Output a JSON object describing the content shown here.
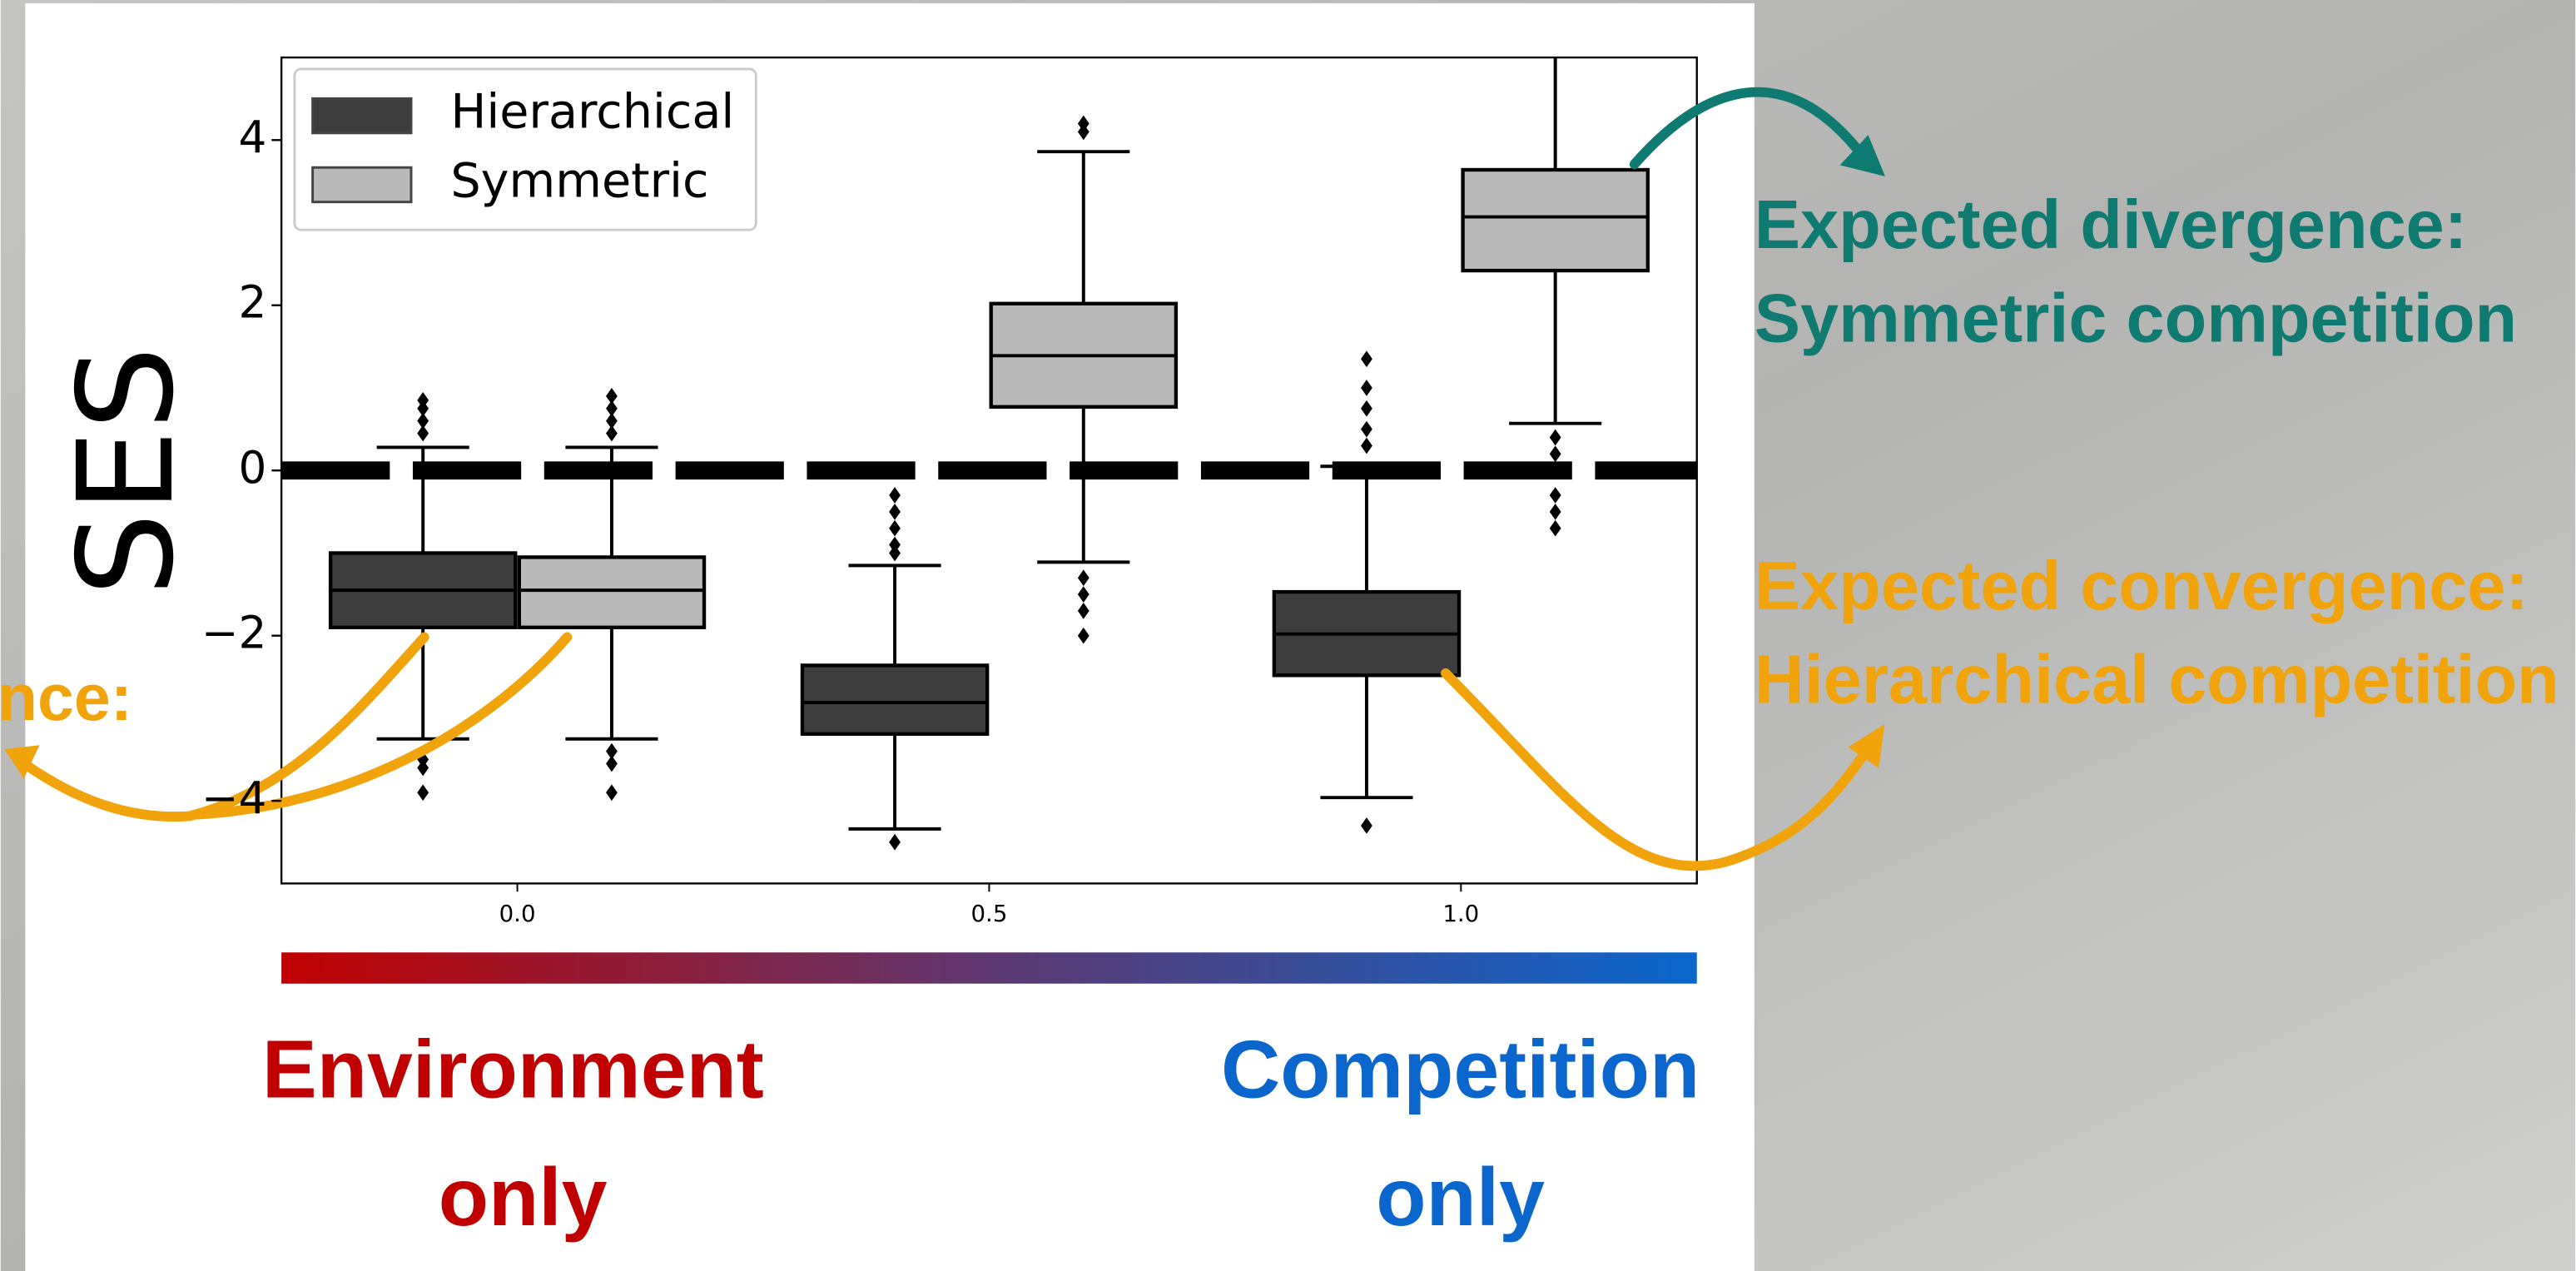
{
  "chart_data": {
    "type": "box",
    "ylabel": "SES",
    "x": [
      0,
      0.5,
      1
    ],
    "xlim": [
      -0.25,
      1.25
    ],
    "xticks": [
      {
        "value": 0,
        "label": "0.0"
      },
      {
        "value": 0.5,
        "label": "0.5"
      },
      {
        "value": 1,
        "label": "1.0"
      }
    ],
    "ylim": [
      -5,
      5
    ],
    "yticks": [
      {
        "value": -4,
        "label": "−4"
      },
      {
        "value": -2,
        "label": "−2"
      },
      0,
      2,
      4
    ],
    "reference_line": 0,
    "legend": "upper left",
    "series": [
      {
        "name": "Hierarchical",
        "color": "#3d3d3d",
        "boxes": [
          {
            "whislo": -3.25,
            "q1": -1.9,
            "med": -1.45,
            "q3": -1.0,
            "whishi": 0.28,
            "fliers": [
              0.45,
              0.6,
              0.75,
              0.85,
              -3.5,
              -3.6,
              -3.9
            ]
          },
          {
            "whislo": -4.34,
            "q1": -3.19,
            "med": -2.81,
            "q3": -2.36,
            "whishi": -1.15,
            "fliers": [
              -0.3,
              -0.5,
              -0.7,
              -0.9,
              -1.0,
              -4.5
            ]
          },
          {
            "whislo": -3.96,
            "q1": -2.48,
            "med": -1.98,
            "q3": -1.47,
            "whishi": 0.05,
            "fliers": [
              0.3,
              0.5,
              0.75,
              1.0,
              1.35,
              -4.3
            ]
          }
        ]
      },
      {
        "name": "Symmetric",
        "color": "#b9b9b9",
        "boxes": [
          {
            "whislo": -3.25,
            "q1": -1.9,
            "med": -1.45,
            "q3": -1.05,
            "whishi": 0.28,
            "fliers": [
              0.45,
              0.6,
              0.75,
              0.9,
              -3.4,
              -3.55,
              -3.9
            ]
          },
          {
            "whislo": -1.11,
            "q1": 0.77,
            "med": 1.39,
            "q3": 2.02,
            "whishi": 3.86,
            "fliers": [
              4.1,
              4.2,
              -1.3,
              -1.5,
              -1.7,
              -2.0
            ]
          },
          {
            "whislo": 0.57,
            "q1": 2.42,
            "med": 3.07,
            "q3": 3.64,
            "whishi": 5.6,
            "fliers": [
              0.4,
              0.2,
              0,
              -0.3,
              -0.5,
              -0.7
            ]
          }
        ]
      }
    ],
    "annotations": [
      {
        "lines": [
          "Environment",
          "only"
        ],
        "color": "#c00000"
      },
      {
        "lines": [
          "Competition",
          "only"
        ],
        "color": "#0a66cc"
      },
      {
        "lines": [
          "Expected divergence:",
          "Symmetric competition"
        ],
        "color": "#0e7a72"
      },
      {
        "lines": [
          "Expected convergence:",
          "Hierarchical competition"
        ],
        "color": "#f0a30a"
      },
      {
        "lines": [
          "nce:"
        ],
        "color": "#f0a30a"
      }
    ]
  }
}
